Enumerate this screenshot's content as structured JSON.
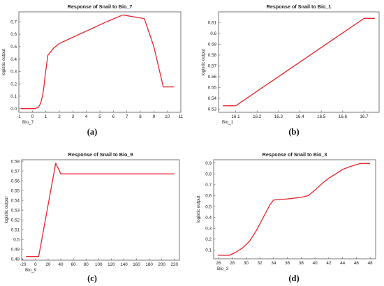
{
  "chart_data": [
    {
      "id": "a",
      "panel_label": "(a)",
      "type": "line",
      "title": "Response of Snail to Bio_7",
      "xlabel": "Bio_7",
      "ylabel": "logistic output",
      "xlim": [
        -1,
        11
      ],
      "ylim": [
        -0.03,
        0.78
      ],
      "xticks": [
        -1,
        0,
        1,
        2,
        3,
        4,
        5,
        6,
        7,
        8,
        9,
        10,
        11
      ],
      "yticks": [
        0,
        0.1,
        0.2,
        0.3,
        0.4,
        0.5,
        0.6,
        0.7
      ],
      "ytick_labels": [
        "0.0",
        "0.1",
        "0.2",
        "0.3",
        "0.4",
        "0.5",
        "0.6",
        "0.7"
      ],
      "color": "#e8242c",
      "series": [
        {
          "x": [
            -0.85,
            0.2,
            0.45,
            0.6,
            0.75,
            0.85,
            0.95,
            1.05,
            1.15,
            1.3,
            1.6,
            2.0,
            2.5,
            3.5,
            4.5,
            5.5,
            6.7,
            8.3,
            9.0,
            9.7,
            10.5
          ],
          "y": [
            0.0,
            0.0,
            0.01,
            0.04,
            0.1,
            0.17,
            0.27,
            0.35,
            0.43,
            0.45,
            0.49,
            0.525,
            0.55,
            0.6,
            0.65,
            0.7,
            0.755,
            0.725,
            0.5,
            0.175,
            0.175
          ]
        }
      ]
    },
    {
      "id": "b",
      "panel_label": "(b)",
      "type": "line",
      "title": "Response of Snail to Bio_1",
      "xlabel": "Bio_1",
      "ylabel": "logistic output",
      "xlim": [
        16.02,
        16.77
      ],
      "ylim": [
        0.527,
        0.62
      ],
      "xticks": [
        16.1,
        16.2,
        16.3,
        16.4,
        16.5,
        16.6,
        16.7
      ],
      "xtick_labels": [
        "16.1",
        "16.2",
        "16.3",
        "16.4",
        "16.5",
        "16.6",
        "16.7"
      ],
      "yticks": [
        0.53,
        0.54,
        0.55,
        0.56,
        0.57,
        0.58,
        0.59,
        0.6,
        0.61
      ],
      "ytick_labels": [
        "0.53",
        "0.54",
        "0.55",
        "0.56",
        "0.57",
        "0.58",
        "0.59",
        "0.6",
        "0.61"
      ],
      "color": "#e8242c",
      "series": [
        {
          "x": [
            16.04,
            16.1,
            16.7,
            16.75
          ],
          "y": [
            0.533,
            0.533,
            0.614,
            0.614
          ]
        }
      ]
    },
    {
      "id": "c",
      "panel_label": "(c)",
      "type": "line",
      "title": "Response of Snail to Bio_9",
      "xlabel": "Bio_9",
      "ylabel": "logistic output",
      "xlim": [
        -22,
        228
      ],
      "ylim": [
        0.4787,
        0.5815
      ],
      "xticks": [
        -20,
        0,
        20,
        40,
        60,
        80,
        100,
        120,
        140,
        160,
        180,
        200,
        220
      ],
      "yticks": [
        0.48,
        0.49,
        0.5,
        0.51,
        0.52,
        0.53,
        0.54,
        0.55,
        0.56,
        0.57,
        0.58
      ],
      "ytick_labels": [
        "0.48",
        "0.49",
        "0.5",
        "0.51",
        "0.52",
        "0.53",
        "0.54",
        "0.55",
        "0.56",
        "0.57",
        "0.58"
      ],
      "color": "#e8242c",
      "series": [
        {
          "x": [
            -15,
            5,
            32,
            40,
            220
          ],
          "y": [
            0.4825,
            0.4825,
            0.578,
            0.567,
            0.567
          ]
        }
      ]
    },
    {
      "id": "d",
      "panel_label": "(d)",
      "type": "line",
      "title": "Response of Snail to Bio_3",
      "xlabel": "Bio_3",
      "ylabel": "logistic output",
      "xlim": [
        25.3,
        48.8
      ],
      "ylim": [
        0.02,
        0.93
      ],
      "xticks": [
        26,
        28,
        30,
        32,
        34,
        36,
        38,
        40,
        42,
        44,
        46,
        48
      ],
      "yticks": [
        0.1,
        0.2,
        0.3,
        0.4,
        0.5,
        0.6,
        0.7,
        0.8,
        0.9
      ],
      "ytick_labels": [
        "0.1",
        "0.2",
        "0.3",
        "0.4",
        "0.5",
        "0.6",
        "0.7",
        "0.8",
        "0.9"
      ],
      "color": "#e8242c",
      "series": [
        {
          "x": [
            25.9,
            27.6,
            28.5,
            29.5,
            30.5,
            31.5,
            32.5,
            33.5,
            34.0,
            36.0,
            38.0,
            39.0,
            40.0,
            41.0,
            42.0,
            43.0,
            44.0,
            45.0,
            46.5,
            48.0
          ],
          "y": [
            0.052,
            0.052,
            0.08,
            0.12,
            0.18,
            0.28,
            0.4,
            0.52,
            0.56,
            0.57,
            0.585,
            0.6,
            0.65,
            0.71,
            0.76,
            0.8,
            0.84,
            0.865,
            0.895,
            0.895
          ]
        }
      ]
    }
  ]
}
